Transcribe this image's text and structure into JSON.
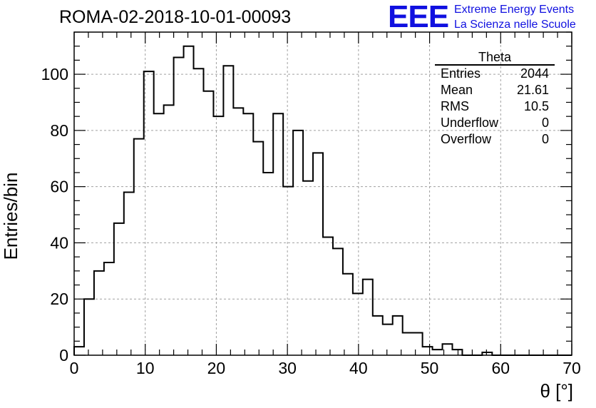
{
  "title": "ROMA-02-2018-10-01-00093",
  "logo": {
    "mark": "EEE",
    "line1": "Extreme Energy Events",
    "line2": "La Scienza nelle Scuole",
    "color": "#1010e0"
  },
  "stats": {
    "title": "Theta",
    "rows": [
      {
        "label": "Entries",
        "value": "2044"
      },
      {
        "label": "Mean",
        "value": "21.61"
      },
      {
        "label": "RMS",
        "value": "10.5"
      },
      {
        "label": "Underflow",
        "value": "0"
      },
      {
        "label": "Overflow",
        "value": "0"
      }
    ]
  },
  "chart_data": {
    "type": "bar",
    "style": "step-histogram",
    "xlabel": "θ [°]",
    "ylabel": "Entries/bin",
    "xlim": [
      0,
      70
    ],
    "ylim": [
      0,
      115
    ],
    "bin_width": 1.4,
    "x_ticks": [
      0,
      10,
      20,
      30,
      40,
      50,
      60,
      70
    ],
    "y_ticks": [
      0,
      20,
      40,
      60,
      80,
      100
    ],
    "grid": true,
    "values": [
      3,
      20,
      30,
      33,
      47,
      58,
      77,
      101,
      86,
      89,
      106,
      110,
      102,
      94,
      85,
      103,
      88,
      86,
      76,
      65,
      86,
      60,
      80,
      62,
      72,
      42,
      38,
      29,
      22,
      27,
      14,
      11,
      14,
      8,
      8,
      3,
      2,
      4,
      2,
      0,
      0,
      1,
      0,
      0,
      0,
      0,
      0,
      0,
      0,
      0
    ]
  }
}
